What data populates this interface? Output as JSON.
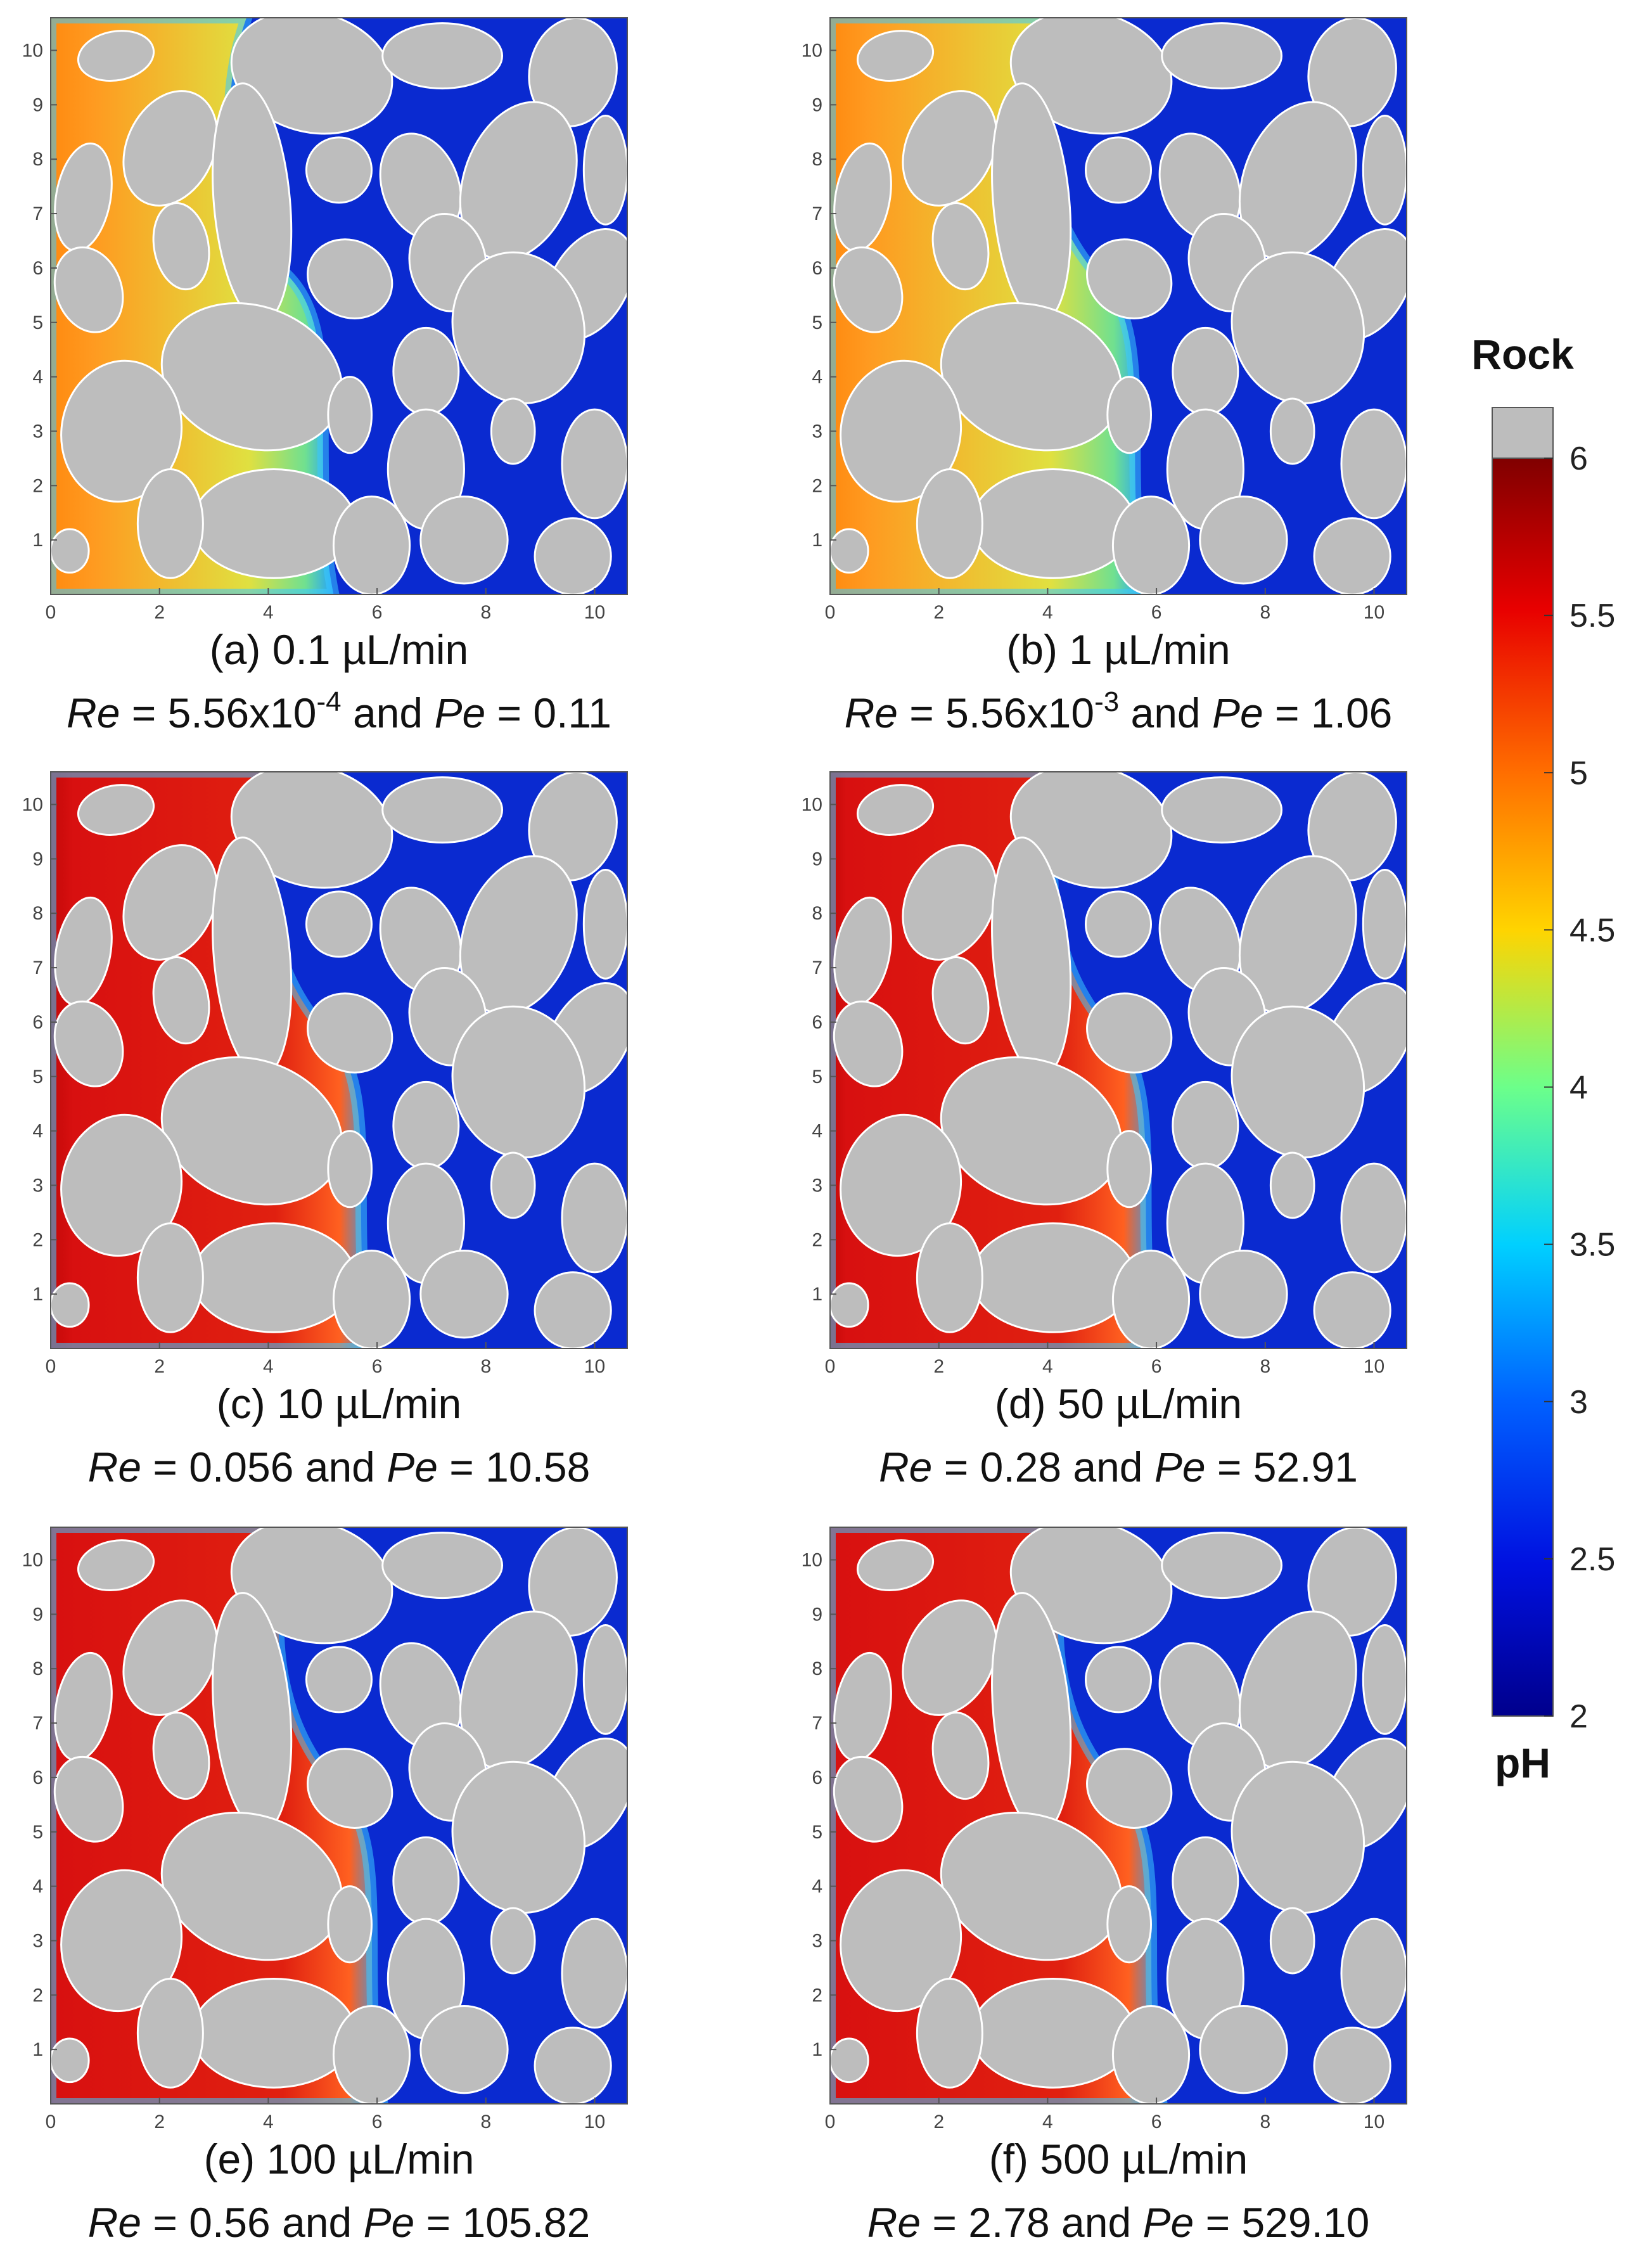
{
  "chart_data": {
    "type": "heatmap",
    "panel_axes": {
      "x_ticks": [
        "0",
        "2",
        "4",
        "6",
        "8",
        "10"
      ],
      "y_ticks": [
        "1",
        "2",
        "3",
        "4",
        "5",
        "6",
        "7",
        "8",
        "9",
        "10"
      ],
      "xlim": [
        0,
        10.6
      ],
      "ylim": [
        0,
        10.6
      ]
    },
    "panels": [
      {
        "id": "a",
        "caption": "(a) 0.1 µL/min",
        "re": "5.56x10",
        "re_exp": "-4",
        "pe": "0.11",
        "front_x": 5.2,
        "front_shape": 0.0
      },
      {
        "id": "b",
        "caption": "(b) 1 µL/min",
        "re": "5.56x10",
        "re_exp": "-3",
        "pe": "1.06",
        "front_x": 5.8,
        "front_shape": 0.2
      },
      {
        "id": "c",
        "caption": "(c) 10 µL/min",
        "re": "0.056",
        "re_exp": "",
        "pe": "10.58",
        "front_x": 5.9,
        "front_shape": 0.5
      },
      {
        "id": "d",
        "caption": "(d) 50 µL/min",
        "re": "0.28",
        "re_exp": "",
        "pe": "52.91",
        "front_x": 6.0,
        "front_shape": 0.7
      },
      {
        "id": "e",
        "caption": "(e) 100 µL/min",
        "re": "0.56",
        "re_exp": "",
        "pe": "105.82",
        "front_x": 6.1,
        "front_shape": 0.9
      },
      {
        "id": "f",
        "caption": "(f) 500 µL/min",
        "re": "2.78",
        "re_exp": "",
        "pe": "529.10",
        "front_x": 6.1,
        "front_shape": 1.0
      }
    ],
    "text": {
      "re_label": "Re",
      "pe_label": "Pe",
      "eq": " = ",
      "and": " and "
    },
    "colorbar": {
      "title_top": "Rock",
      "title_bottom": "pH",
      "range": [
        2,
        6
      ],
      "ticks": [
        "6",
        "5.5",
        "5",
        "4.5",
        "4",
        "3.5",
        "3",
        "2.5",
        "2"
      ],
      "rock_color": "#bdbdbd",
      "colormap": "jet"
    }
  }
}
